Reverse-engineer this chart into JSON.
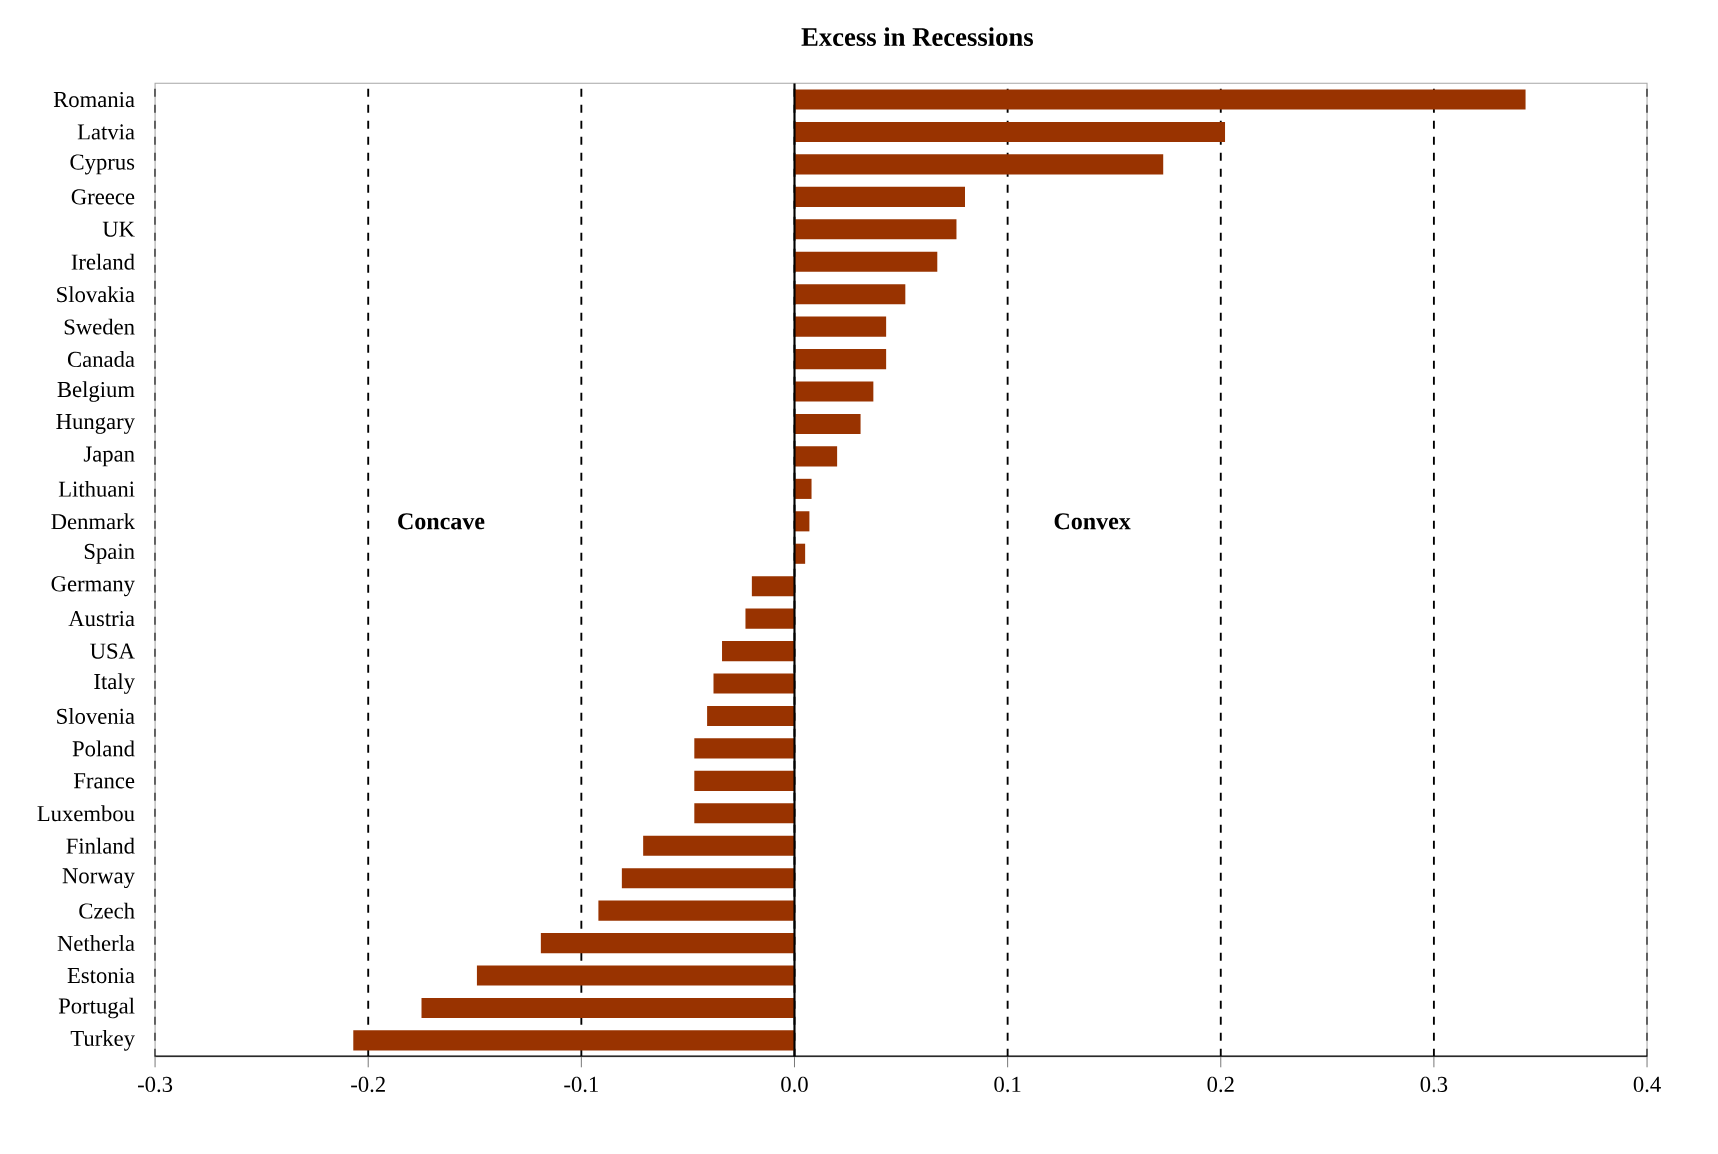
{
  "chart_data": {
    "type": "bar",
    "orientation": "horizontal",
    "title": "Excess in Recessions",
    "categories": [
      "Romania",
      "Latvia",
      "Cyprus",
      "Greece",
      "UK",
      "Ireland",
      "Slovakia",
      "Sweden",
      "Canada",
      "Belgium",
      "Hungary",
      "Japan",
      "Lithuani",
      "Denmark",
      "Spain",
      "Germany",
      "Austria",
      "USA",
      "Italy",
      "Slovenia",
      "Poland",
      "France",
      "Luxembou",
      "Finland",
      "Norway",
      "Czech",
      "Netherla",
      "Estonia",
      "Portugal",
      "Turkey"
    ],
    "values": [
      0.343,
      0.202,
      0.173,
      0.08,
      0.076,
      0.067,
      0.052,
      0.043,
      0.043,
      0.037,
      0.031,
      0.02,
      0.008,
      0.007,
      0.005,
      -0.02,
      -0.023,
      -0.034,
      -0.038,
      -0.041,
      -0.047,
      -0.047,
      -0.047,
      -0.071,
      -0.081,
      -0.092,
      -0.119,
      -0.149,
      -0.175,
      -0.207
    ],
    "color": "#993300",
    "xlim": [
      -0.3,
      0.4
    ],
    "xticks": [
      -0.3,
      -0.2,
      -0.1,
      {
        "value": 0,
        "label": "0.0"
      },
      0.1,
      0.2,
      0.3,
      0.4
    ],
    "grid": "x",
    "line_style": "dashed",
    "annotations": [
      "Concave",
      "Convex"
    ]
  }
}
